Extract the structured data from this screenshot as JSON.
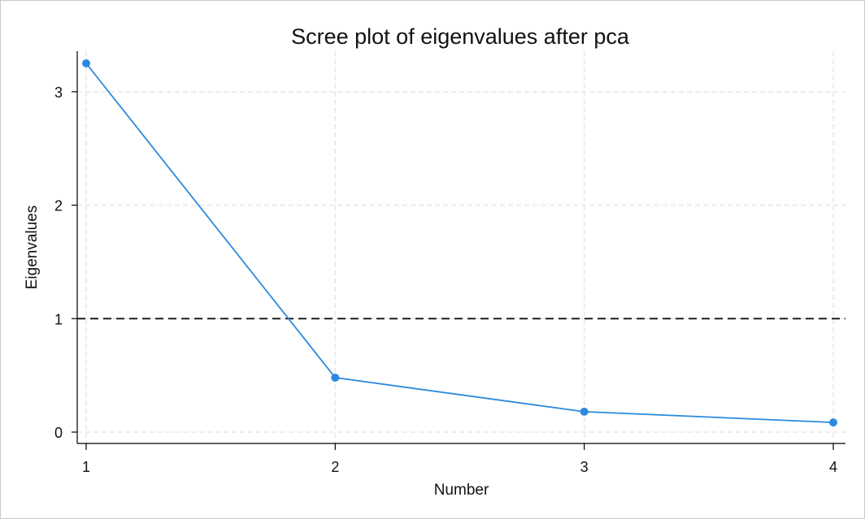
{
  "chart_data": {
    "type": "line",
    "title": "Scree plot of eigenvalues after pca",
    "xlabel": "Number",
    "ylabel": "Eigenvalues",
    "x": [
      1,
      2,
      3,
      4
    ],
    "series": [
      {
        "values": [
          3.25,
          0.48,
          0.18,
          0.085
        ]
      }
    ],
    "xlim": [
      1,
      4
    ],
    "ylim": [
      0,
      3.25
    ],
    "xticks": [
      1,
      2,
      3,
      4
    ],
    "yticks": [
      0,
      1,
      2,
      3
    ],
    "reference_line": {
      "axis": "y",
      "value": 1,
      "style": "dashed"
    },
    "grid": true,
    "markers": true
  },
  "colors": {
    "series": "#2b8ae0",
    "reference_line": "#111111",
    "grid": "#e6e6e6"
  }
}
